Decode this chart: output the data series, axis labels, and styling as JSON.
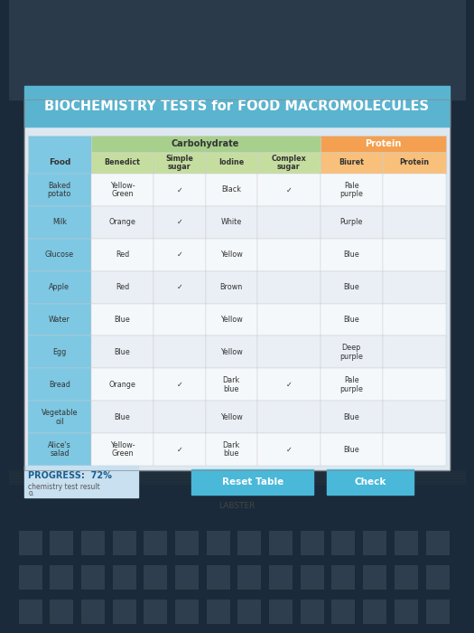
{
  "title": "BIOCHEMISTRY TESTS for FOOD MACROMOLECULES",
  "title_bg": "#5ab4d0",
  "title_color": "white",
  "carb_color": "#a8d08d",
  "protein_color": "#f4a050",
  "food_col_color": "#7ec8e3",
  "subheader_carb": "#c5dea0",
  "subheader_prot": "#f8c07a",
  "rows": [
    [
      "Baked\npotato",
      "Yellow-\nGreen",
      "✓",
      "Black",
      "✓",
      "Pale\npurple",
      ""
    ],
    [
      "Milk",
      "Orange",
      "✓",
      "White",
      "",
      "Purple",
      ""
    ],
    [
      "Glucose",
      "Red",
      "✓",
      "Yellow",
      "",
      "Blue",
      ""
    ],
    [
      "Apple",
      "Red",
      "✓",
      "Brown",
      "",
      "Blue",
      ""
    ],
    [
      "Water",
      "Blue",
      "",
      "Yellow",
      "",
      "Blue",
      ""
    ],
    [
      "Egg",
      "Blue",
      "",
      "Yellow",
      "",
      "Deep\npurple",
      ""
    ],
    [
      "Bread",
      "Orange",
      "✓",
      "Dark\nblue",
      "✓",
      "Pale\npurple",
      ""
    ],
    [
      "Vegetable\noil",
      "Blue",
      "",
      "Yellow",
      "",
      "Blue",
      ""
    ],
    [
      "Alice's\nsalad",
      "Yellow-\nGreen",
      "✓",
      "Dark\nblue",
      "✓",
      "Blue",
      ""
    ]
  ],
  "subheader_labels": [
    "",
    "Benedict",
    "Simple\nsugar",
    "Iodine",
    "Complex\nsugar",
    "Biuret",
    "Protein"
  ],
  "progress_text": "PROGRESS:  72%",
  "progress_sub1": "chemistry test result",
  "progress_sub2": "o.",
  "button1": "Reset Table",
  "button2": "Check",
  "footer": "LABSTER",
  "laptop_dark": "#1a2a3a",
  "laptop_top": "#2a3a4a",
  "screen_bg": "#dde8f0",
  "table_bg_light": "#eef3f8",
  "table_bg_alt": "#e2ecf4",
  "cell_food_bg": "#7ec8e3",
  "cell_white_bg": "#f5f8fb",
  "cell_white_alt": "#eaeff5",
  "btn_color": "#4ab8d8",
  "progress_bg": "#c8e0f0",
  "progress_color": "#1a6090"
}
